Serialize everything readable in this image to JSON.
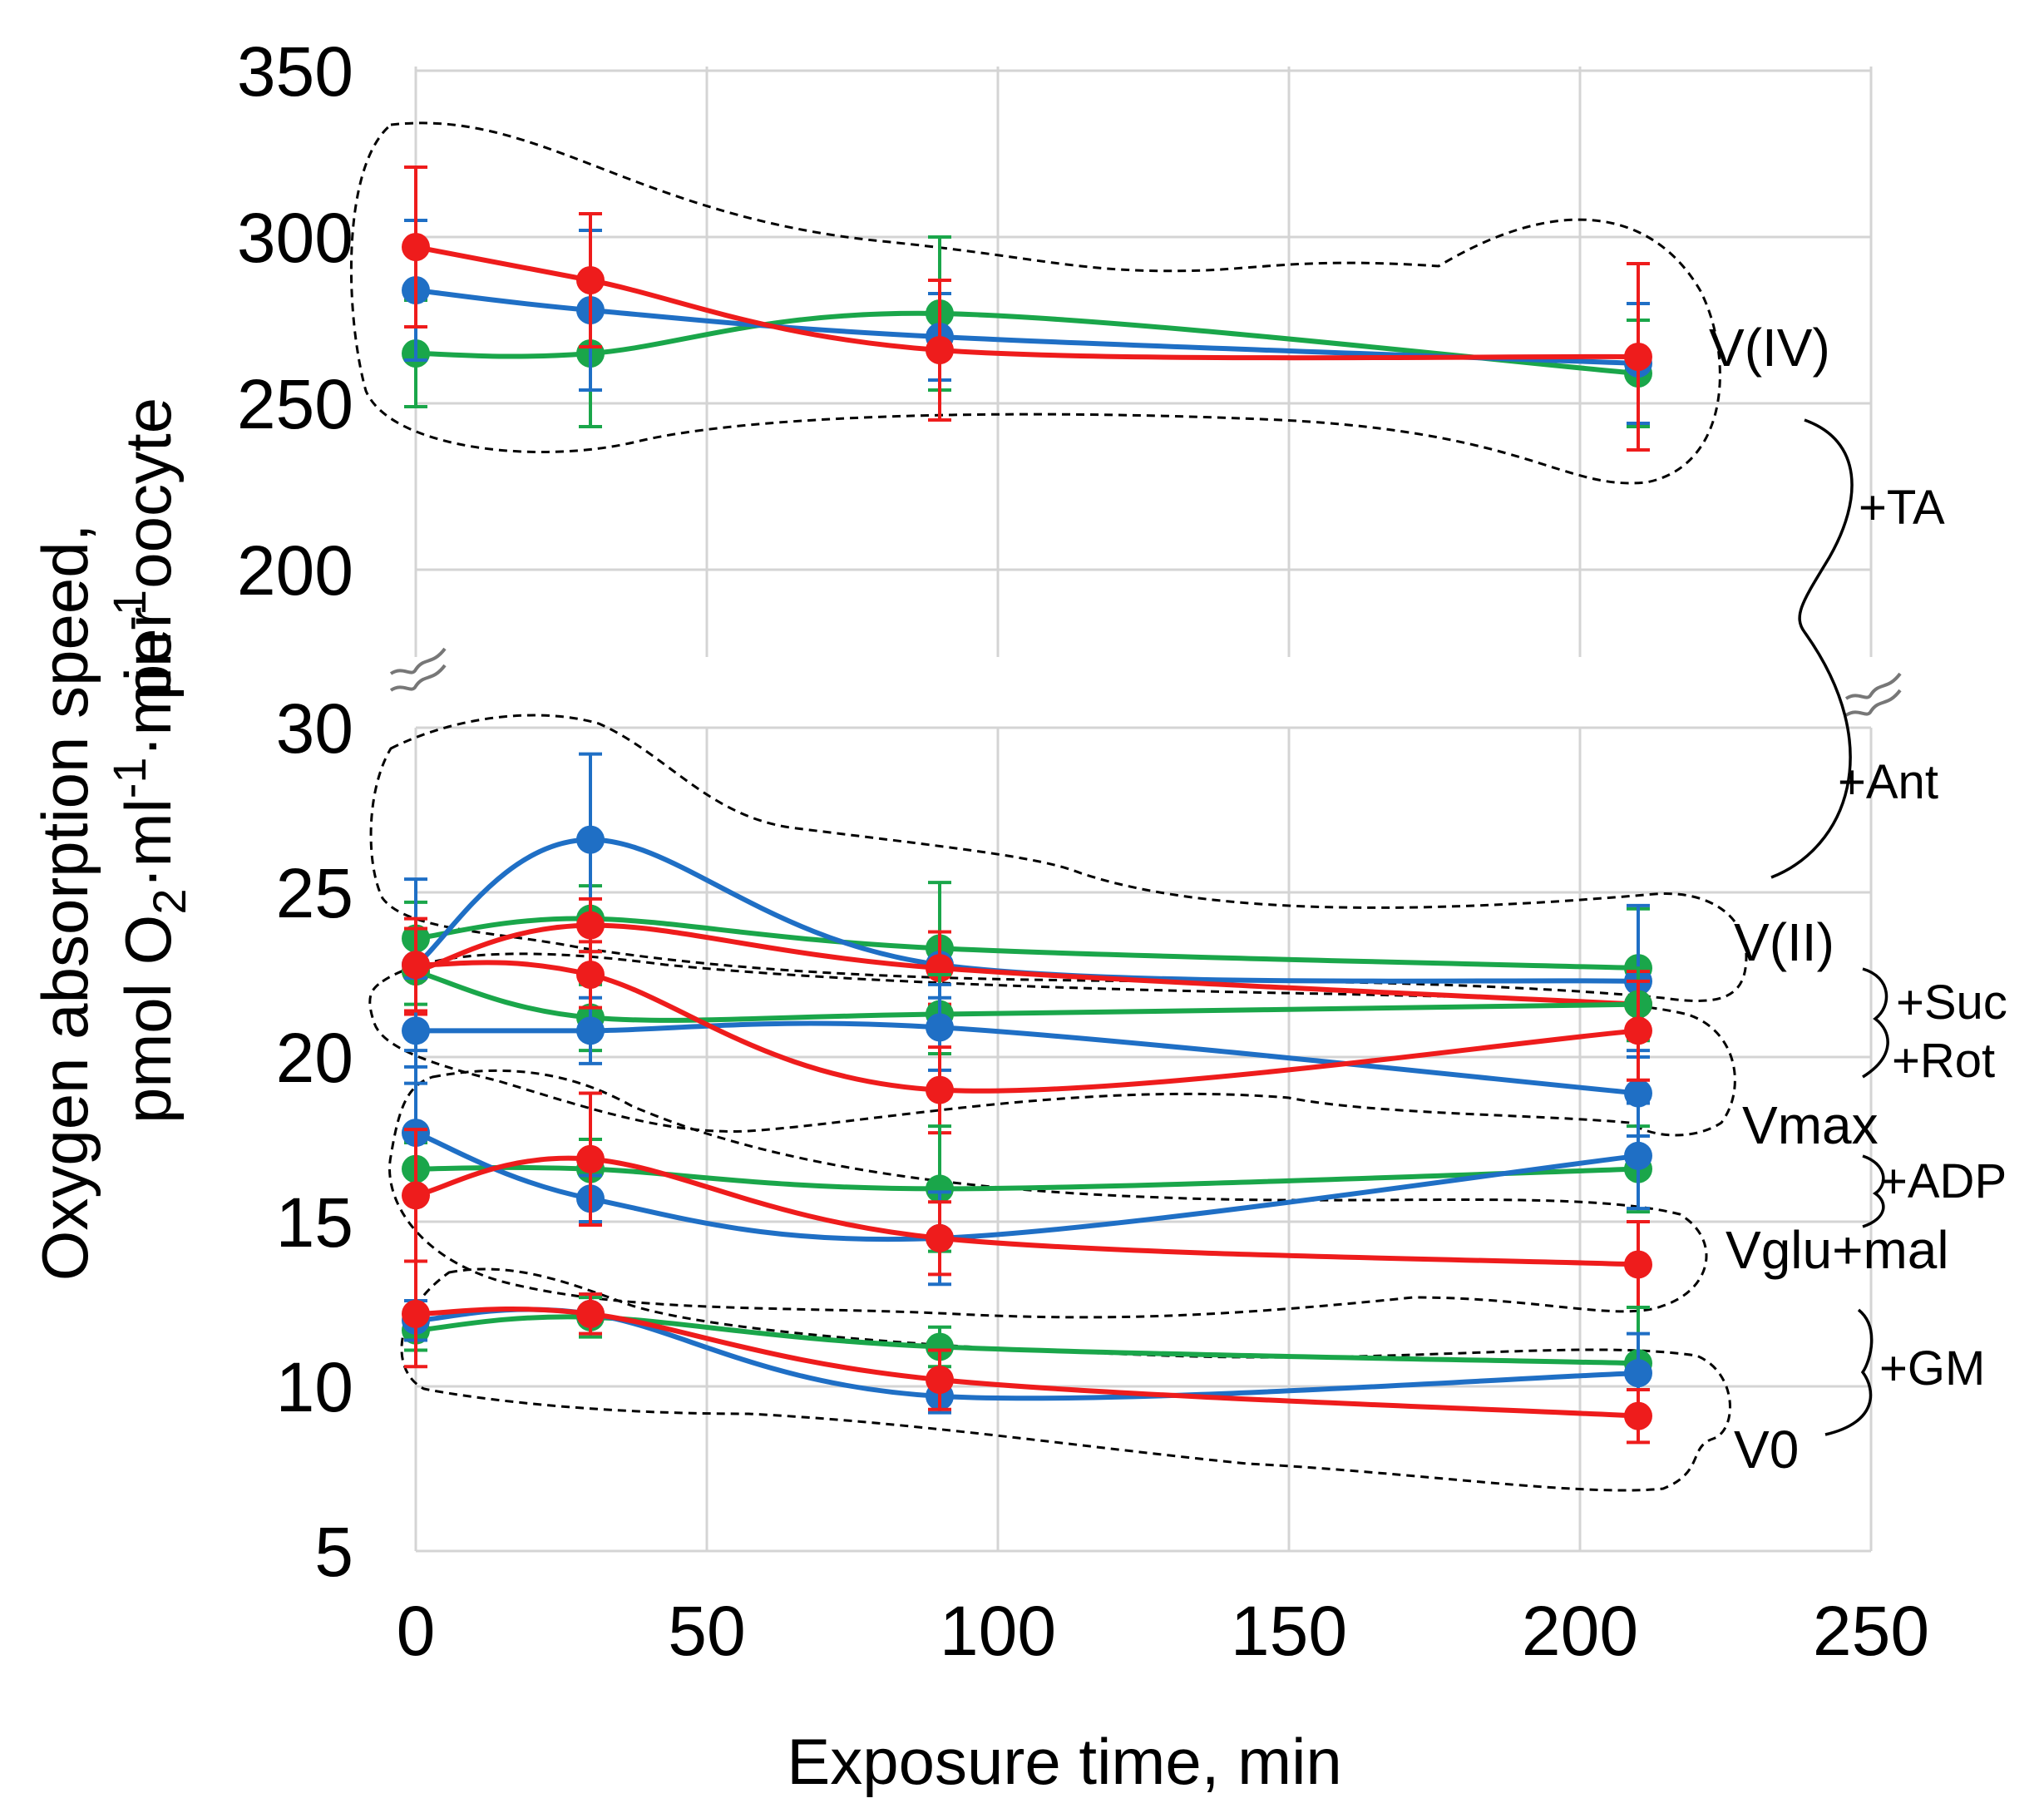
{
  "chart_data": {
    "type": "line",
    "xlabel": "Exposure time, min",
    "ylabel_line1": "Oxygen absorption speed,",
    "ylabel_line2_a": "pmol O",
    "ylabel_line2_sub": "2",
    "ylabel_line2_b": "·ml",
    "ylabel_line2_sup1": "-1",
    "ylabel_line2_c": "·min",
    "ylabel_line2_sup2": "-1",
    "ylabel_line2_d": "per oocyte",
    "x_ticks": [
      "0",
      "50",
      "100",
      "150",
      "200",
      "250"
    ],
    "x_tick_values": [
      0,
      50,
      100,
      150,
      200,
      250
    ],
    "upper_y_ticks": [
      "350",
      "300",
      "250",
      "200"
    ],
    "upper_y_tick_values": [
      350,
      300,
      250,
      200
    ],
    "lower_y_ticks": [
      "30",
      "25",
      "20",
      "15",
      "10",
      "5"
    ],
    "lower_y_tick_values": [
      30,
      25,
      20,
      15,
      10,
      5
    ],
    "xlim": [
      0,
      250
    ],
    "upper_ylim": [
      200,
      350
    ],
    "lower_ylim": [
      5,
      30
    ],
    "x": [
      0,
      30,
      90,
      210
    ],
    "colors": {
      "blue": "#1f6fc5",
      "red": "#ee1c1c",
      "green": "#1aa64a"
    },
    "groups": [
      {
        "label": "V(IV)",
        "panel": "upper",
        "series": [
          {
            "name": "blue",
            "values": [
              284,
              278,
              270,
              262
            ],
            "errors": [
              21,
              24,
              13,
              18
            ]
          },
          {
            "name": "red",
            "values": [
              297,
              287,
              266,
              264
            ],
            "errors": [
              24,
              20,
              21,
              28
            ]
          },
          {
            "name": "green",
            "values": [
              265,
              265,
              277,
              259
            ],
            "errors": [
              16,
              22,
              23,
              16
            ]
          }
        ]
      },
      {
        "label": "V(II)",
        "panel": "lower",
        "series": [
          {
            "name": "blue",
            "values": [
              22.8,
              26.6,
              22.8,
              22.3
            ],
            "errors": [
              2.6,
              2.6,
              1.0,
              2.3
            ]
          },
          {
            "name": "red",
            "values": [
              22.6,
              24.0,
              22.7,
              21.6
            ],
            "errors": [
              1.3,
              0.8,
              1.1,
              1.0
            ]
          },
          {
            "name": "green",
            "values": [
              23.6,
              24.2,
              23.3,
              22.7
            ],
            "errors": [
              1.1,
              1.0,
              2.0,
              1.8
            ]
          }
        ]
      },
      {
        "label": "Vmax",
        "panel": "lower",
        "series": [
          {
            "name": "blue",
            "values": [
              20.8,
              20.8,
              20.9,
              18.9
            ],
            "errors": [
              1.6,
              1.0,
              1.3,
              1.3
            ]
          },
          {
            "name": "red",
            "values": [
              22.8,
              22.5,
              19.0,
              20.8
            ],
            "errors": [
              1.4,
              1.0,
              1.3,
              1.5
            ]
          },
          {
            "name": "green",
            "values": [
              22.6,
              21.2,
              21.3,
              21.6
            ],
            "errors": [
              1.0,
              1.0,
              1.2,
              1.1
            ]
          }
        ]
      },
      {
        "label": "Vglu+mal",
        "panel": "lower",
        "series": [
          {
            "name": "blue",
            "values": [
              17.7,
              15.7,
              14.5,
              17.0
            ],
            "errors": [
              2.0,
              0.7,
              1.4,
              1.6
            ]
          },
          {
            "name": "red",
            "values": [
              15.8,
              16.9,
              14.5,
              13.7
            ],
            "errors": [
              2.0,
              2.0,
              1.1,
              1.3
            ]
          },
          {
            "name": "green",
            "values": [
              16.6,
              16.6,
              16.0,
              16.6
            ],
            "errors": [
              0.8,
              0.9,
              1.9,
              1.3
            ]
          }
        ]
      },
      {
        "label": "V0",
        "panel": "lower",
        "series": [
          {
            "name": "blue",
            "values": [
              12.0,
              12.2,
              9.7,
              10.4
            ],
            "errors": [
              0.6,
              0.6,
              0.5,
              1.2
            ]
          },
          {
            "name": "red",
            "values": [
              12.2,
              12.2,
              10.2,
              9.1
            ],
            "errors": [
              1.6,
              0.6,
              0.9,
              0.8
            ]
          },
          {
            "name": "green",
            "values": [
              11.7,
              12.1,
              11.2,
              10.7
            ],
            "errors": [
              0.6,
              0.6,
              0.6,
              1.7
            ]
          }
        ]
      }
    ],
    "annotations": {
      "ta": "+TA",
      "ant": "+Ant",
      "suc": "+Suc",
      "rot": "+Rot",
      "adp": "+ADP",
      "gm": "+GM"
    }
  }
}
